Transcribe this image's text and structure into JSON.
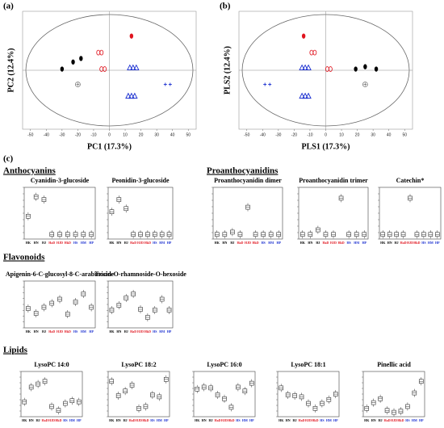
{
  "panel_c_label": "(c)",
  "section_headings": [
    "Anthocyanins",
    "Proanthocyanidins",
    "Flavonoids",
    "Lipids"
  ],
  "chart_data": [
    {
      "type": "scatter",
      "panel_label": "(a)",
      "x_label": "PC1 (17.3%)",
      "y_label": "PC2 (12.4%)",
      "xlim": [
        -55,
        55
      ],
      "ylim": [
        -50,
        50
      ],
      "xticks": [
        -50,
        -40,
        -30,
        -20,
        -10,
        0,
        10,
        20,
        30,
        40,
        50
      ],
      "series": [
        {
          "color": "#000000",
          "marker": "dot",
          "x": [
            -30,
            -23,
            -18
          ],
          "y": [
            1,
            7,
            10
          ]
        },
        {
          "color": "#777777",
          "marker": "circleplus",
          "x": [
            -20
          ],
          "y": [
            -12
          ]
        },
        {
          "color": "#e0141e",
          "marker": "ring",
          "x": [
            -4,
            -6
          ],
          "y": [
            1,
            15
          ]
        },
        {
          "color": "#e0141e",
          "marker": "dot",
          "x": [
            14
          ],
          "y": [
            29
          ]
        },
        {
          "color": "#1a2fd0",
          "marker": "triangle",
          "x": [
            15,
            14
          ],
          "y": [
            2,
            -22
          ]
        },
        {
          "color": "#1a2fd0",
          "marker": "plus",
          "x": [
            37
          ],
          "y": [
            -12
          ]
        }
      ]
    },
    {
      "type": "scatter",
      "panel_label": "(b)",
      "x_label": "PLS1 (17.3%)",
      "y_label": "PLS2 (12.4%)",
      "xlim": [
        -55,
        55
      ],
      "ylim": [
        -50,
        50
      ],
      "xticks": [
        -50,
        -40,
        -30,
        -20,
        -10,
        0,
        10,
        20,
        30,
        40,
        50
      ],
      "series": [
        {
          "color": "#000000",
          "marker": "dot",
          "x": [
            19,
            25,
            32
          ],
          "y": [
            1,
            3,
            1
          ]
        },
        {
          "color": "#777777",
          "marker": "circleplus",
          "x": [
            25
          ],
          "y": [
            -12
          ]
        },
        {
          "color": "#e0141e",
          "marker": "ring",
          "x": [
            2,
            -8
          ],
          "y": [
            1,
            15
          ]
        },
        {
          "color": "#e0141e",
          "marker": "dot",
          "x": [
            -14
          ],
          "y": [
            29
          ]
        },
        {
          "color": "#1a2fd0",
          "marker": "triangle",
          "x": [
            -13,
            -13
          ],
          "y": [
            2,
            -22
          ]
        },
        {
          "color": "#1a2fd0",
          "marker": "plus",
          "x": [
            -37
          ],
          "y": [
            -12
          ]
        }
      ]
    },
    {
      "type": "box",
      "title": "Cyanidin-3-glucoside",
      "ylim": [
        0,
        100
      ],
      "categories": [
        "HK",
        "HN",
        "HJ",
        "HaD",
        "HJD",
        "HkD",
        "HS",
        "HM",
        "HP"
      ],
      "colors": [
        "#000",
        "#000",
        "#000",
        "#e0141e",
        "#e0141e",
        "#e0141e",
        "#1a2fd0",
        "#1a2fd0",
        "#1a2fd0"
      ],
      "values": [
        45,
        88,
        82,
        5,
        5,
        5,
        5,
        5,
        5
      ]
    },
    {
      "type": "box",
      "title": "Peonidin-3-glucoside",
      "ylim": [
        0,
        100
      ],
      "categories": [
        "HK",
        "HN",
        "HJ",
        "HaD",
        "HJD",
        "HkD",
        "HS",
        "HM",
        "HP"
      ],
      "colors": [
        "#000",
        "#000",
        "#000",
        "#e0141e",
        "#e0141e",
        "#e0141e",
        "#1a2fd0",
        "#1a2fd0",
        "#1a2fd0"
      ],
      "values": [
        55,
        82,
        62,
        5,
        5,
        5,
        5,
        5,
        5
      ]
    },
    {
      "type": "box",
      "title": "Proanthocyanidin dimer",
      "ylim": [
        0,
        100
      ],
      "categories": [
        "HK",
        "HN",
        "HJ",
        "HaD",
        "HJD",
        "HkD",
        "HS",
        "HM",
        "HP"
      ],
      "colors": [
        "#000",
        "#000",
        "#000",
        "#e0141e",
        "#e0141e",
        "#e0141e",
        "#1a2fd0",
        "#1a2fd0",
        "#1a2fd0"
      ],
      "values": [
        5,
        5,
        10,
        5,
        65,
        5,
        5,
        5,
        5
      ]
    },
    {
      "type": "box",
      "title": "Proanthocyanidin trimer",
      "ylim": [
        0,
        100
      ],
      "categories": [
        "HK",
        "HN",
        "HJ",
        "HaD",
        "HJD",
        "HkD",
        "HS",
        "HM",
        "HP"
      ],
      "colors": [
        "#000",
        "#000",
        "#000",
        "#e0141e",
        "#e0141e",
        "#e0141e",
        "#1a2fd0",
        "#1a2fd0",
        "#1a2fd0"
      ],
      "values": [
        5,
        5,
        15,
        5,
        5,
        85,
        5,
        5,
        5
      ]
    },
    {
      "type": "box",
      "title": "Catechin*",
      "ylim": [
        0,
        100
      ],
      "categories": [
        "HK",
        "HN",
        "HJ",
        "HaD",
        "HJD",
        "HkD",
        "HS",
        "HM",
        "HP"
      ],
      "colors": [
        "#000",
        "#000",
        "#000",
        "#e0141e",
        "#e0141e",
        "#e0141e",
        "#1a2fd0",
        "#1a2fd0",
        "#1a2fd0"
      ],
      "values": [
        5,
        5,
        5,
        5,
        85,
        5,
        5,
        5,
        5
      ]
    },
    {
      "type": "box",
      "title": "Apigenin-6-C-glucosyl-8-C-arabinoside",
      "ylim": [
        0,
        100
      ],
      "categories": [
        "HK",
        "HN",
        "HJ",
        "HaD",
        "HJD",
        "HkD",
        "HS",
        "HM",
        "HP"
      ],
      "colors": [
        "#000",
        "#000",
        "#000",
        "#e0141e",
        "#e0141e",
        "#e0141e",
        "#1a2fd0",
        "#1a2fd0",
        "#1a2fd0"
      ],
      "values": [
        42,
        30,
        45,
        55,
        65,
        28,
        58,
        78,
        45
      ]
    },
    {
      "type": "box",
      "title": "Tricin-O-rhamnoside-O-hexoside",
      "ylim": [
        0,
        100
      ],
      "categories": [
        "HK",
        "HN",
        "HJ",
        "HaD",
        "HJD",
        "HkD",
        "HS",
        "HM",
        "HP"
      ],
      "colors": [
        "#000",
        "#000",
        "#000",
        "#e0141e",
        "#e0141e",
        "#e0141e",
        "#1a2fd0",
        "#1a2fd0",
        "#1a2fd0"
      ],
      "values": [
        38,
        50,
        68,
        78,
        40,
        20,
        38,
        65,
        38
      ]
    },
    {
      "type": "box",
      "title": "LysoPC 14:0",
      "ylim": [
        0,
        100
      ],
      "categories": [
        "HK",
        "HN",
        "HJ",
        "HaD",
        "HJD",
        "HkD",
        "HS",
        "HM",
        "HP"
      ],
      "colors": [
        "#000",
        "#000",
        "#000",
        "#e0141e",
        "#e0141e",
        "#e0141e",
        "#1a2fd0",
        "#1a2fd0",
        "#1a2fd0"
      ],
      "values": [
        32,
        70,
        78,
        85,
        20,
        10,
        28,
        35,
        32
      ]
    },
    {
      "type": "box",
      "title": "LysoPC 18:2",
      "ylim": [
        0,
        100
      ],
      "categories": [
        "HK",
        "HN",
        "HJ",
        "HaD",
        "HJD",
        "HkD",
        "HS",
        "HM",
        "HP"
      ],
      "colors": [
        "#000",
        "#000",
        "#000",
        "#e0141e",
        "#e0141e",
        "#e0141e",
        "#1a2fd0",
        "#1a2fd0",
        "#1a2fd0"
      ],
      "values": [
        85,
        48,
        60,
        75,
        15,
        20,
        50,
        45,
        90
      ]
    },
    {
      "type": "box",
      "title": "LysoPC 16:0",
      "ylim": [
        0,
        100
      ],
      "categories": [
        "HK",
        "HN",
        "HJ",
        "HaD",
        "HJD",
        "HkD",
        "HS",
        "HM",
        "HP"
      ],
      "colors": [
        "#000",
        "#000",
        "#000",
        "#e0141e",
        "#e0141e",
        "#e0141e",
        "#1a2fd0",
        "#1a2fd0",
        "#1a2fd0"
      ],
      "values": [
        65,
        70,
        68,
        50,
        40,
        18,
        70,
        60,
        80
      ]
    },
    {
      "type": "box",
      "title": "LysoPC 18:1",
      "ylim": [
        0,
        100
      ],
      "categories": [
        "HK",
        "HN",
        "HJ",
        "HaD",
        "HJD",
        "HkD",
        "HS",
        "HM",
        "HP"
      ],
      "colors": [
        "#000",
        "#000",
        "#000",
        "#e0141e",
        "#e0141e",
        "#e0141e",
        "#1a2fd0",
        "#1a2fd0",
        "#1a2fd0"
      ],
      "values": [
        68,
        50,
        48,
        45,
        28,
        15,
        28,
        38,
        52
      ]
    },
    {
      "type": "box",
      "title": "Pinellic acid",
      "ylim": [
        0,
        100
      ],
      "categories": [
        "HK",
        "HN",
        "HJ",
        "HaD",
        "HJD",
        "HkD",
        "HS",
        "HM",
        "HP"
      ],
      "colors": [
        "#000",
        "#000",
        "#000",
        "#e0141e",
        "#e0141e",
        "#e0141e",
        "#1a2fd0",
        "#1a2fd0",
        "#1a2fd0"
      ],
      "values": [
        15,
        30,
        40,
        10,
        5,
        8,
        20,
        55,
        85
      ]
    }
  ]
}
